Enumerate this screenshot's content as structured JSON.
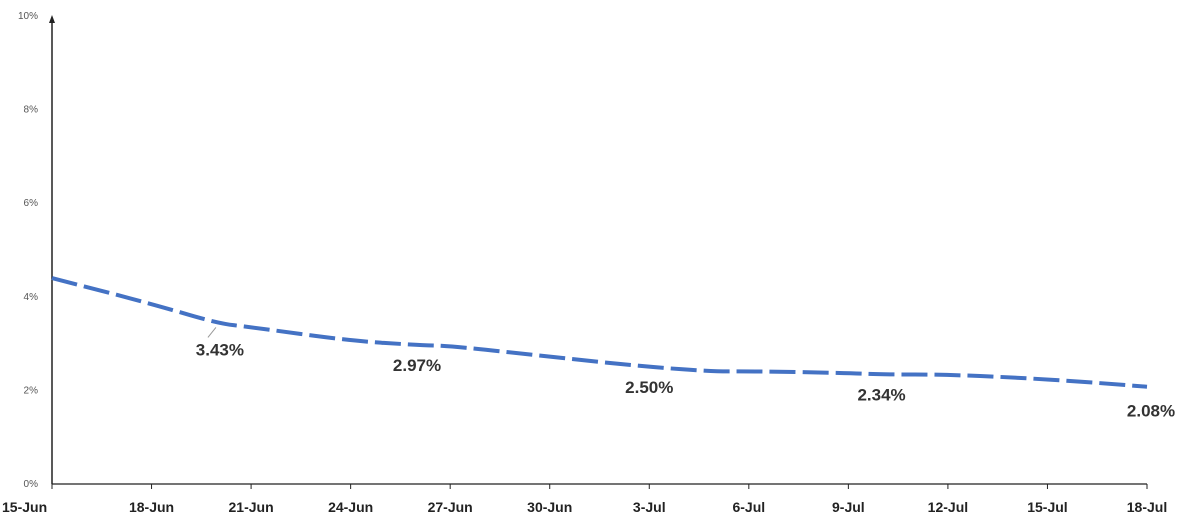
{
  "chart_data": {
    "type": "line",
    "title": "",
    "xlabel": "",
    "ylabel": "",
    "ylim": [
      0,
      10
    ],
    "y_tick_labels": [
      "0%",
      "2%",
      "4%",
      "6%",
      "8%",
      "10%"
    ],
    "x_tick_labels": [
      "15-Jun",
      "18-Jun",
      "21-Jun",
      "24-Jun",
      "27-Jun",
      "30-Jun",
      "3-Jul",
      "6-Jul",
      "9-Jul",
      "12-Jul",
      "15-Jul",
      "18-Jul"
    ],
    "grid": false,
    "line_style": "dashed",
    "line_color": "#4472C4",
    "x": [
      "15-Jun",
      "18-Jun",
      "20-Jun",
      "21-Jun",
      "24-Jun",
      "26-Jun",
      "27-Jun",
      "30-Jun",
      "3-Jul",
      "5-Jul",
      "6-Jul",
      "9-Jul",
      "10-Jul",
      "12-Jul",
      "15-Jul",
      "18-Jul"
    ],
    "values": [
      4.4,
      3.85,
      3.43,
      3.35,
      3.06,
      2.97,
      2.95,
      2.72,
      2.5,
      2.4,
      2.41,
      2.37,
      2.34,
      2.34,
      2.24,
      2.08
    ],
    "data_labels": [
      {
        "x": "20-Jun",
        "value": 3.43,
        "text": "3.43%"
      },
      {
        "x": "26-Jun",
        "value": 2.97,
        "text": "2.97%"
      },
      {
        "x": "3-Jul",
        "value": 2.5,
        "text": "2.50%"
      },
      {
        "x": "10-Jul",
        "value": 2.34,
        "text": "2.34%"
      },
      {
        "x": "18-Jul",
        "value": 2.08,
        "text": "2.08%"
      }
    ]
  }
}
